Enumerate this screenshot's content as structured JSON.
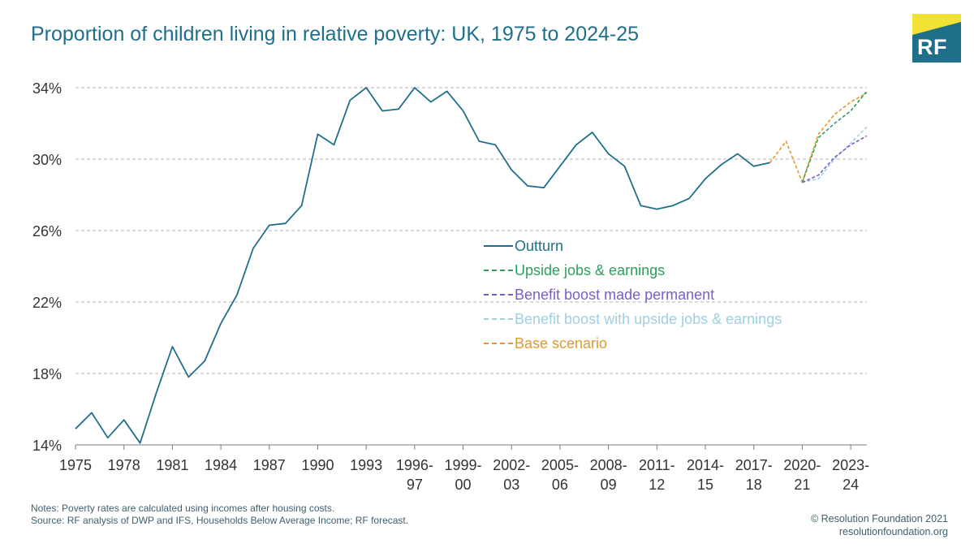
{
  "title": "Proportion of children living in relative poverty: UK, 1975 to 2024-25",
  "logo": "RF",
  "notes": [
    "Notes: Poverty rates are calculated using incomes after housing costs.",
    "Source: RF analysis of DWP and IFS, Households Below Average Income; RF forecast."
  ],
  "credit": [
    "© Resolution Foundation 2021",
    "resolutionfoundation.org"
  ],
  "colors": {
    "outturn": "#1f6f8b",
    "upside": "#2e9e5b",
    "benefit": "#7b5cc7",
    "benefit_upside": "#9fcfe3",
    "base": "#e09a2b",
    "grid": "#b5b5b5",
    "axis_text": "#333333"
  },
  "chart_data": {
    "type": "line",
    "title": "Proportion of children living in relative poverty: UK, 1975 to 2024-25",
    "ylim": [
      14,
      34
    ],
    "y_ticks": [
      "14%",
      "18%",
      "22%",
      "26%",
      "30%",
      "34%"
    ],
    "y_tick_values": [
      14,
      18,
      22,
      26,
      30,
      34
    ],
    "x_tick_labels": [
      [
        "1975"
      ],
      [
        "1978"
      ],
      [
        "1981"
      ],
      [
        "1984"
      ],
      [
        "1987"
      ],
      [
        "1990"
      ],
      [
        "1993"
      ],
      [
        "1996-",
        "97"
      ],
      [
        "1999-",
        "00"
      ],
      [
        "2002-",
        "03"
      ],
      [
        "2005-",
        "06"
      ],
      [
        "2008-",
        "09"
      ],
      [
        "2011-",
        "12"
      ],
      [
        "2014-",
        "15"
      ],
      [
        "2017-",
        "18"
      ],
      [
        "2020-",
        "21"
      ],
      [
        "2023-",
        "24"
      ]
    ],
    "x_tick_index": [
      0,
      3,
      6,
      9,
      12,
      15,
      18,
      21,
      24,
      27,
      30,
      33,
      36,
      39,
      42,
      45,
      48
    ],
    "grid": "horizontal dashed",
    "legend_position": "center-right",
    "series": [
      {
        "name": "Outturn",
        "color_key": "outturn",
        "dashed": false,
        "start_index": 0,
        "values": [
          14.9,
          15.8,
          14.4,
          15.4,
          14.1,
          16.9,
          19.5,
          17.8,
          18.7,
          20.8,
          22.4,
          25.0,
          26.3,
          26.4,
          27.4,
          31.4,
          30.8,
          33.3,
          34.0,
          32.7,
          32.8,
          34.0,
          33.2,
          33.8,
          32.7,
          31.0,
          30.8,
          29.4,
          28.5,
          28.4,
          29.6,
          30.8,
          31.5,
          30.3,
          29.6,
          27.4,
          27.2,
          27.4,
          27.8,
          28.9,
          29.7,
          30.3,
          29.6,
          29.8
        ]
      },
      {
        "name": "Upside jobs & earnings",
        "color_key": "upside",
        "dashed": true,
        "start_index": 45,
        "values": [
          28.7,
          31.2,
          32.0,
          32.7,
          33.8
        ]
      },
      {
        "name": "Benefit boost made permanent",
        "color_key": "benefit",
        "dashed": true,
        "start_index": 45,
        "values": [
          28.7,
          29.1,
          30.1,
          30.8,
          31.3
        ]
      },
      {
        "name": "Benefit boost with upside jobs & earnings",
        "color_key": "benefit_upside",
        "dashed": true,
        "start_index": 45,
        "values": [
          28.7,
          28.9,
          30.0,
          30.9,
          31.8
        ]
      },
      {
        "name": "Base scenario",
        "color_key": "base",
        "dashed": true,
        "start_index": 43,
        "values": [
          29.8,
          31.0,
          28.7,
          31.4,
          32.5,
          33.2,
          33.7
        ]
      }
    ]
  }
}
